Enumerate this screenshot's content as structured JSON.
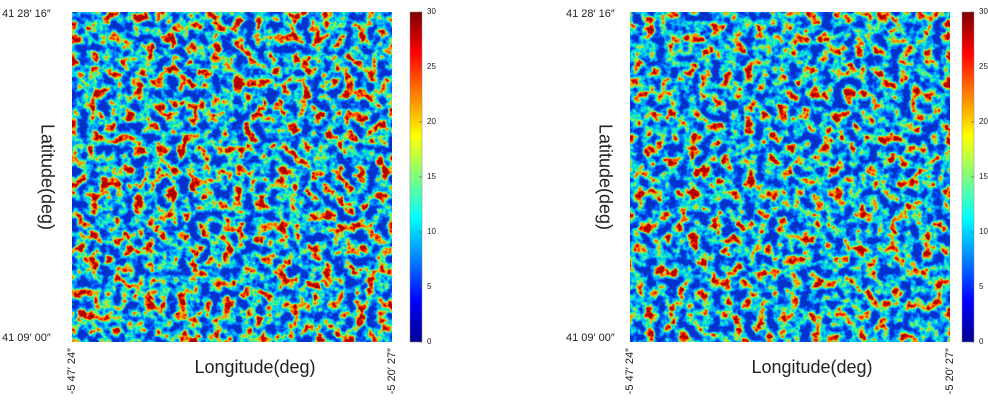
{
  "chart_data": [
    {
      "type": "image",
      "xlabel": "Longitude(deg)",
      "ylabel": "Latitude(deg)",
      "xtick_labels": [
        "-5 47′ 24″",
        "-5 20′ 27″"
      ],
      "ytick_labels": [
        "41 28′ 16″",
        "41 09′ 00″"
      ],
      "colormap": "jet",
      "clim": [
        0,
        30
      ],
      "cticks": [
        0,
        5,
        10,
        15,
        20,
        25,
        30
      ]
    },
    {
      "type": "image",
      "xlabel": "Longitude(deg)",
      "ylabel": "Latitude(deg)",
      "xtick_labels": [
        "-5 47′ 24″",
        "-5 20′ 27″"
      ],
      "ytick_labels": [
        "41 28′ 16″",
        "41 09′ 00″"
      ],
      "colormap": "jet",
      "clim": [
        0,
        30
      ],
      "cticks": [
        0,
        5,
        10,
        15,
        20,
        25,
        30
      ]
    }
  ]
}
